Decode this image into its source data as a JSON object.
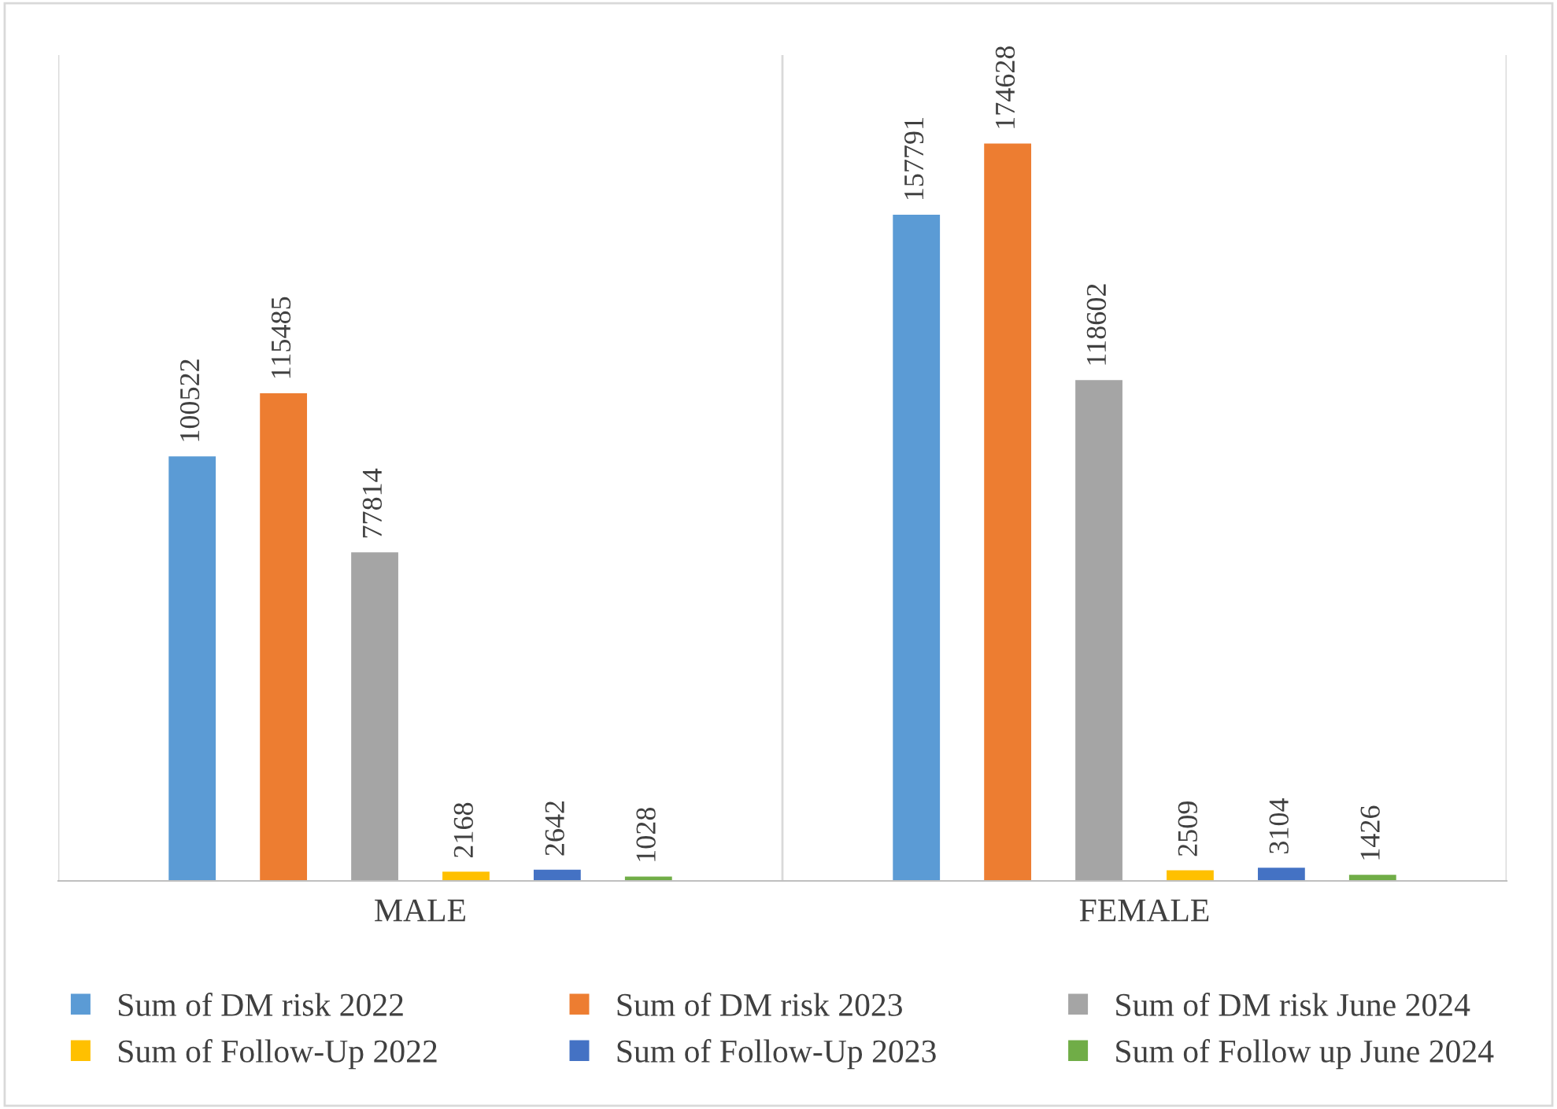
{
  "chart_data": {
    "type": "bar",
    "categories": [
      "MALE",
      "FEMALE"
    ],
    "series": [
      {
        "name": "Sum of DM risk 2022",
        "color": "#5b9bd5",
        "values": [
          100522,
          157791
        ]
      },
      {
        "name": "Sum of DM risk 2023",
        "color": "#ed7d31",
        "values": [
          115485,
          174628
        ]
      },
      {
        "name": "Sum of DM risk June 2024",
        "color": "#a5a5a5",
        "values": [
          77814,
          118602
        ]
      },
      {
        "name": "Sum of Follow-Up 2022",
        "color": "#ffc000",
        "values": [
          2168,
          2509
        ]
      },
      {
        "name": "Sum of Follow-Up 2023",
        "color": "#4472c4",
        "values": [
          2642,
          3104
        ]
      },
      {
        "name": "Sum of Follow up June 2024",
        "color": "#70ad47",
        "values": [
          1028,
          1426
        ]
      }
    ],
    "data_labels": true,
    "grid": "x",
    "legend": "bottom",
    "tick_labels": "x"
  }
}
